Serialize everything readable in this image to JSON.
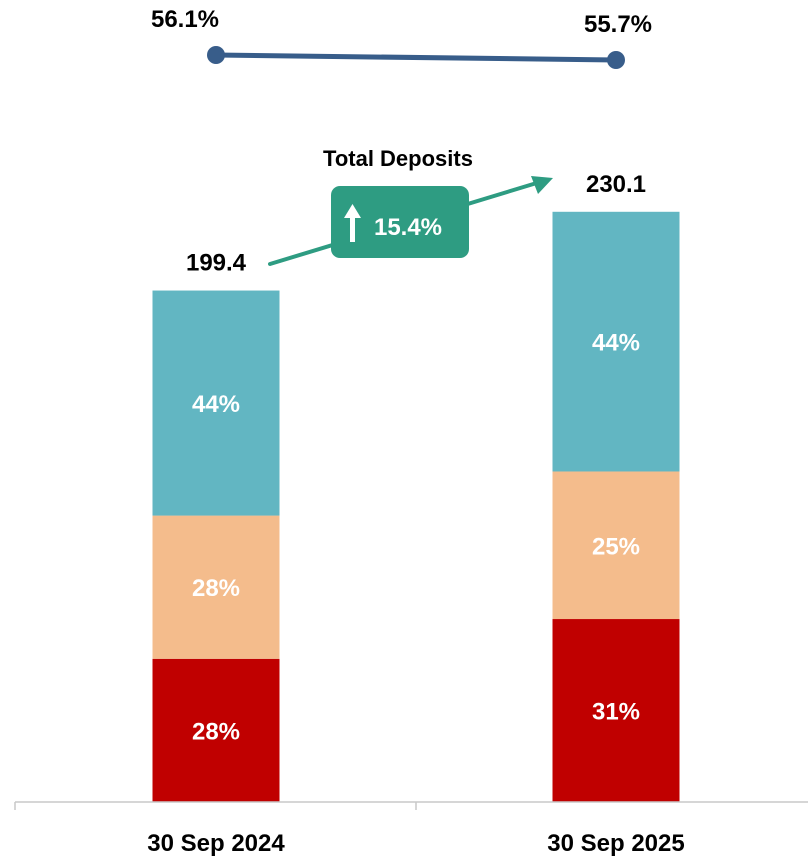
{
  "chart_data": {
    "type": "bar",
    "subtype": "stacked-100-with-ratio-line",
    "title": "Total Deposits",
    "categories": [
      "30 Sep 2024",
      "30 Sep 2025"
    ],
    "totals": [
      199.4,
      230.1
    ],
    "total_labels": [
      "199.4",
      "230.1"
    ],
    "growth_label": "15.4%",
    "series": [
      {
        "color": "#c00000",
        "values": [
          28,
          31
        ],
        "labels": [
          "28%",
          "31%"
        ]
      },
      {
        "color": "#f4bc8c",
        "values": [
          28,
          25
        ],
        "labels": [
          "28%",
          "25%"
        ]
      },
      {
        "color": "#62b6c2",
        "values": [
          44,
          44
        ],
        "labels": [
          "44%",
          "44%"
        ]
      }
    ],
    "line": {
      "color": "#385d8a",
      "values": [
        56.1,
        55.7
      ],
      "labels": [
        "56.1%",
        "55.7%"
      ]
    },
    "arrow_color": "#2e9c82",
    "badge_color": "#2e9c82",
    "grid": false,
    "legend": "none"
  }
}
